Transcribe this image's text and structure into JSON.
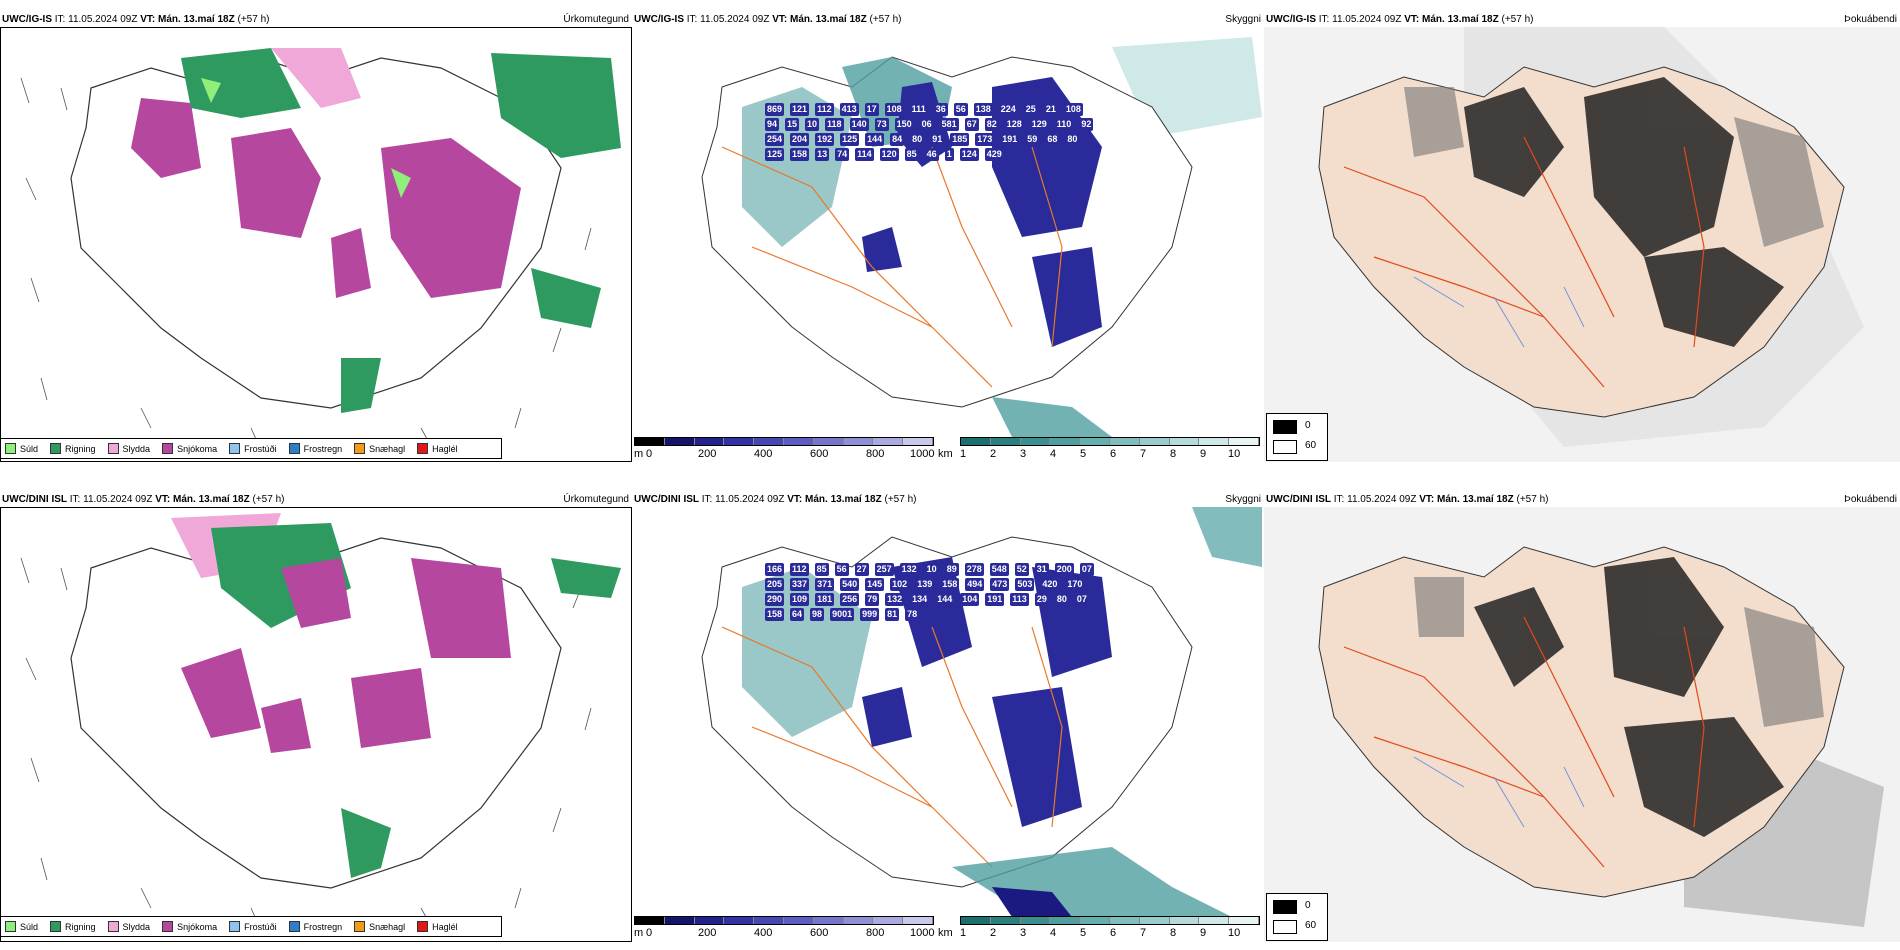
{
  "legend_items": [
    {
      "label": "Súld",
      "color": "#8ef07a"
    },
    {
      "label": "Rigning",
      "color": "#2e9a5f"
    },
    {
      "label": "Slydda",
      "color": "#f0a8d8"
    },
    {
      "label": "Snjókoma",
      "color": "#b5479e"
    },
    {
      "label": "Frostúði",
      "color": "#8fc3f0"
    },
    {
      "label": "Frostregn",
      "color": "#2f7fc8"
    },
    {
      "label": "Snæhagl",
      "color": "#f29a1a"
    },
    {
      "label": "Haglél",
      "color": "#e01818"
    }
  ],
  "rows": [
    {
      "model": "UWC/IG-IS",
      "it_label": "IT:",
      "it_value": "11.05.2024 09Z",
      "vt_label": "VT:",
      "vt_value": "Mán. 13.maí 18Z",
      "lead": "(+57 h)",
      "titles": {
        "precip": "Úrkomutegund",
        "visibility": "Skyggni",
        "fog": "Þokuábendi"
      },
      "visibility_labels": [
        "869",
        "121",
        "112",
        "413",
        "17",
        "108",
        "111",
        "36",
        "56",
        "138",
        "224",
        "25",
        "21",
        "108",
        "94",
        "15",
        "10",
        "118",
        "140",
        "73",
        "150",
        "06",
        "581",
        "67",
        "82",
        "128",
        "129",
        "110",
        "92",
        "254",
        "204",
        "192",
        "125",
        "144",
        "84",
        "80",
        "91",
        "185",
        "173",
        "191",
        "59",
        "68",
        "80",
        "125",
        "158",
        "13",
        "74",
        "114",
        "120",
        "85",
        "46",
        "1",
        "124",
        "429"
      ],
      "fog_scale": {
        "min": "0",
        "max": "60"
      }
    },
    {
      "model": "UWC/DINI ISL",
      "it_label": "IT:",
      "it_value": "11.05.2024 09Z",
      "vt_label": "VT:",
      "vt_value": "Mán. 13.maí 18Z",
      "lead": "(+57 h)",
      "titles": {
        "precip": "Úrkomutegund",
        "visibility": "Skyggni",
        "fog": "Þokuábendi"
      },
      "visibility_labels": [
        "166",
        "112",
        "85",
        "56",
        "27",
        "257",
        "132",
        "10",
        "89",
        "278",
        "548",
        "52",
        "31",
        "200",
        "07",
        "205",
        "337",
        "371",
        "540",
        "145",
        "102",
        "139",
        "158",
        "494",
        "473",
        "503",
        "420",
        "170",
        "290",
        "109",
        "181",
        "256",
        "79",
        "132",
        "134",
        "144",
        "104",
        "191",
        "113",
        "29",
        "80",
        "07",
        "158",
        "64",
        "98",
        "9001",
        "999",
        "81",
        "78"
      ],
      "fog_scale": {
        "min": "0",
        "max": "60"
      }
    }
  ],
  "elevation_scale": {
    "unit": "m",
    "ticks": [
      "0",
      "200",
      "400",
      "600",
      "800",
      "1000"
    ]
  },
  "cloud_scale": {
    "unit": "km",
    "ticks": [
      "1",
      "2",
      "3",
      "4",
      "5",
      "6",
      "7",
      "8",
      "9",
      "10"
    ]
  },
  "colors": {
    "snow": "#b5479e",
    "rain": "#2e9a5f",
    "drizzle": "#8ef07a",
    "sleet": "#f0a8d8",
    "roads": "#e8782a",
    "land": "#f3ddcc",
    "vis_teal": "#4f9f9f",
    "vis_navy": "#2a2a9a"
  }
}
